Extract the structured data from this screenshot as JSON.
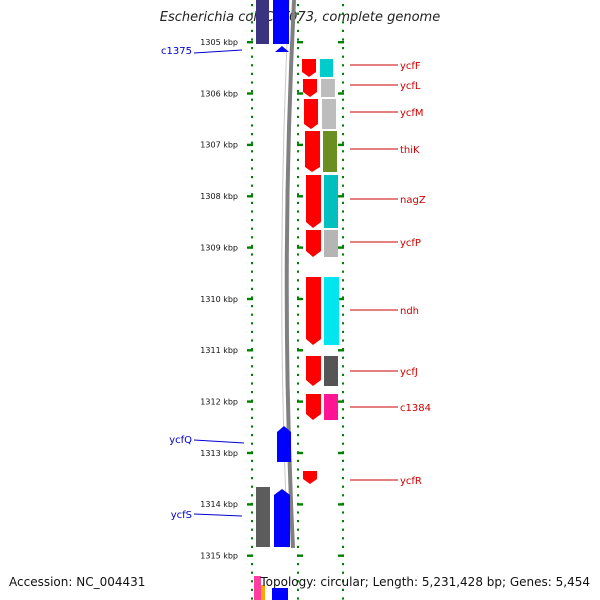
{
  "title": "Escherichia coli CFT073, complete genome",
  "accession": "Accession: NC_004431",
  "genome_info": "Topology: circular; Length: 5,231,428 bp; Genes: 5,454",
  "colors": {
    "forward_gene": "#0000ff",
    "reverse_gene": "#ff0000",
    "left_label": "#0000cc",
    "right_label": "#cc0000",
    "ticks": "#008000",
    "backbone": "#808080"
  },
  "scale": {
    "unit": "kbp",
    "ticks": [
      {
        "kbp": 1305,
        "label": "1305 kbp"
      },
      {
        "kbp": 1306,
        "label": "1306 kbp"
      },
      {
        "kbp": 1307,
        "label": "1307 kbp"
      },
      {
        "kbp": 1308,
        "label": "1308 kbp"
      },
      {
        "kbp": 1309,
        "label": "1309 kbp"
      },
      {
        "kbp": 1310,
        "label": "1310 kbp"
      },
      {
        "kbp": 1311,
        "label": "1311 kbp"
      },
      {
        "kbp": 1312,
        "label": "1312 kbp"
      },
      {
        "kbp": 1313,
        "label": "1313 kbp"
      },
      {
        "kbp": 1314,
        "label": "1314 kbp"
      },
      {
        "kbp": 1315,
        "label": "1315 kbp"
      }
    ]
  },
  "genes_left": [
    {
      "label": "c1375"
    },
    {
      "label": "ycfQ"
    },
    {
      "label": "ycfS"
    }
  ],
  "genes_right": [
    {
      "label": "ycfF"
    },
    {
      "label": "ycfL"
    },
    {
      "label": "ycfM"
    },
    {
      "label": "thiK"
    },
    {
      "label": "nagZ"
    },
    {
      "label": "ycfP"
    },
    {
      "label": "ndh"
    },
    {
      "label": "ycfJ"
    },
    {
      "label": "c1384"
    },
    {
      "label": "ycfR"
    }
  ]
}
